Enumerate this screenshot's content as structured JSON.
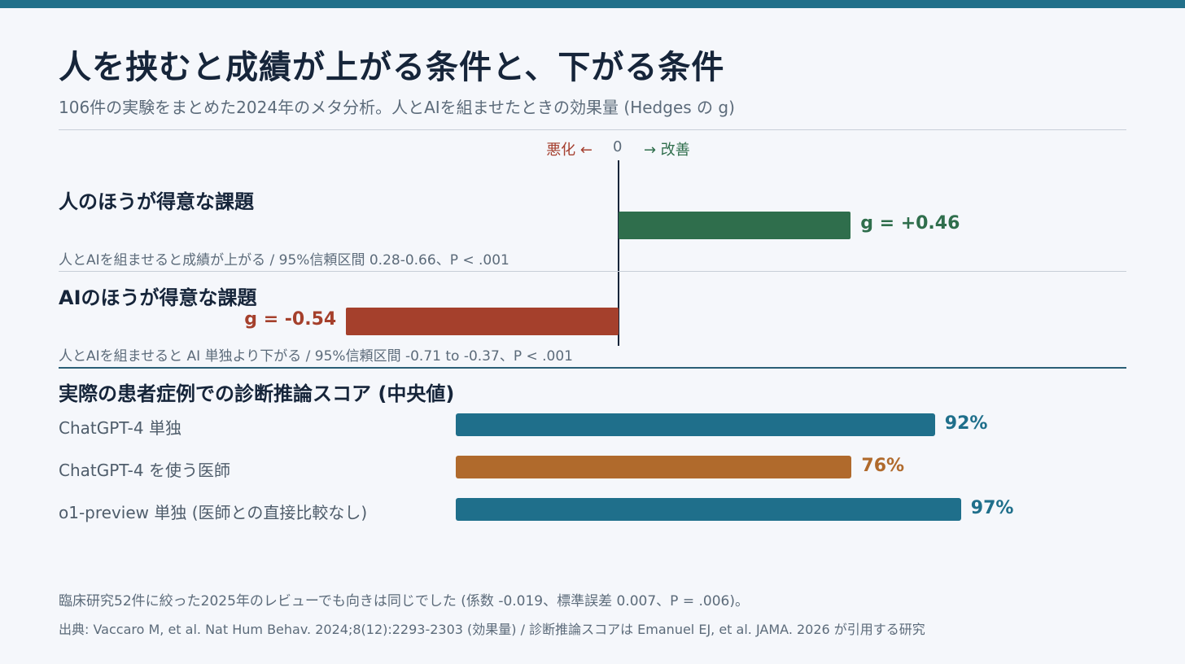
{
  "title": "人を挟むと成績が上がる条件と、下がる条件",
  "subtitle": "106件の実験をまとめた2024年のメタ分析。人とAIを組ませたときの効果量 (Hedges の g)",
  "colors": {
    "accent": "#22708a",
    "positive": "#2f6e4c",
    "negative": "#a5402c",
    "teal_bar": "#1f6f8b",
    "orange_bar": "#b06a2c"
  },
  "axis": {
    "worse_label": "悪化 ←",
    "zero_label": "0",
    "better_label": "→ 改善"
  },
  "chart_data": [
    {
      "type": "bar",
      "orientation": "horizontal",
      "categories": [
        "人のほうが得意な課題",
        "AIのほうが得意な課題"
      ],
      "values": [
        0.46,
        -0.54
      ],
      "value_labels": [
        "g = +0.46",
        "g = -0.54"
      ],
      "notes": [
        "人とAIを組ませると成績が上がる / 95%信頼区間 0.28-0.66、P < .001",
        "人とAIを組ませると AI 単独より下がる / 95%信頼区間 -0.71 to -0.37、P < .001"
      ],
      "xlim": [
        -1.0,
        1.0
      ],
      "colors": [
        "#2f6e4c",
        "#a5402c"
      ]
    },
    {
      "type": "bar",
      "orientation": "horizontal",
      "title": "実際の患者症例での診断推論スコア (中央値)",
      "categories": [
        "ChatGPT-4 単独",
        "ChatGPT-4 を使う医師",
        "o1-preview 単独 (医師との直接比較なし)"
      ],
      "values": [
        92,
        76,
        97
      ],
      "value_labels": [
        "92%",
        "76%",
        "97%"
      ],
      "xlim": [
        0,
        100
      ],
      "colors": [
        "#1f6f8b",
        "#b06a2c",
        "#1f6f8b"
      ]
    }
  ],
  "footnotes": {
    "review": "臨床研究52件に絞った2025年のレビューでも向きは同じでした (係数 -0.019、標準誤差 0.007、P = .006)。",
    "source": "出典: Vaccaro M, et al. Nat Hum Behav. 2024;8(12):2293-2303 (効果量) / 診断推論スコアは Emanuel EJ, et al. JAMA. 2026 が引用する研究"
  }
}
